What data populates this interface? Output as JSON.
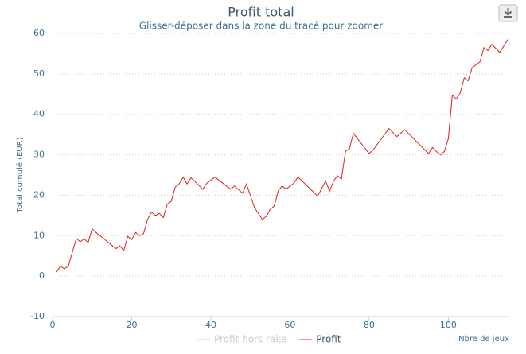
{
  "chart_data": {
    "type": "line",
    "title": "Profit total",
    "subtitle": "Glisser-déposer dans la zone du tracé pour zoomer",
    "y_label": "Total cumulé (EUR)",
    "x_label": "Nbre de jeux",
    "x": [
      1,
      2,
      3,
      4,
      6,
      7,
      8,
      9,
      10,
      11,
      16,
      17,
      18,
      19,
      20,
      21,
      22,
      23,
      24,
      25,
      26,
      27,
      28,
      29,
      30,
      31,
      32,
      33,
      34,
      35,
      38,
      39,
      41,
      45,
      46,
      48,
      49,
      51,
      53,
      54,
      55,
      56,
      57,
      58,
      59,
      61,
      62,
      67,
      69,
      70,
      71,
      72,
      73,
      74,
      75,
      76,
      80,
      81,
      85,
      87,
      89,
      95,
      96,
      97,
      98,
      99,
      100,
      101,
      102,
      103,
      104,
      105,
      106,
      108,
      109,
      110,
      111,
      113,
      115
    ],
    "series": [
      {
        "name": "Profit hors rake",
        "color": "#cccccc",
        "visible": false
      },
      {
        "name": "Profit",
        "color": "#e0201b",
        "visible": true,
        "values": [
          1,
          2.5,
          1.8,
          2.5,
          9.3,
          8.5,
          9.2,
          8.3,
          11.7,
          10.8,
          6.8,
          7.5,
          6.3,
          9.8,
          9,
          10.8,
          10,
          10.5,
          14,
          15.8,
          15,
          15.5,
          14.5,
          17.8,
          18.5,
          22,
          22.8,
          24.5,
          22.8,
          24.3,
          21.5,
          23,
          24.5,
          21.5,
          22.3,
          20.5,
          22.8,
          17,
          14,
          14.8,
          16.5,
          17.3,
          21,
          22.3,
          21.5,
          23,
          24.5,
          19.8,
          23.5,
          21,
          23.5,
          24.8,
          24,
          30.8,
          31.5,
          35.3,
          30.3,
          31.2,
          36.5,
          34.5,
          36.2,
          30.3,
          31.8,
          30.8,
          30,
          30.8,
          34,
          44.7,
          43.8,
          45.3,
          49,
          48.3,
          51.5,
          53,
          56.5,
          55.8,
          57.3,
          55.3,
          58.5
        ]
      }
    ],
    "xlim": [
      0,
      115
    ],
    "xticks": [
      0,
      20,
      40,
      60,
      80,
      100
    ],
    "ylim": [
      -10,
      60
    ],
    "yticks": [
      -10,
      0,
      10,
      20,
      30,
      40,
      50,
      60
    ],
    "grid": true
  }
}
